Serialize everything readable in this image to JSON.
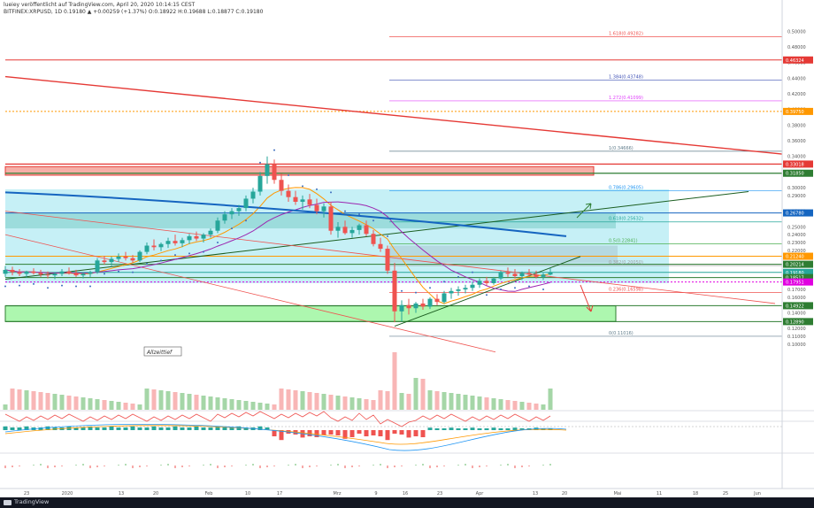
{
  "header": {
    "line1": "lueiey veröffentlicht auf TradingView.com, April 20, 2020 10:14:15 CEST",
    "line2": "BITFINEX:XRPUSD, 1D 0.19180 ▲ +0.00259 (+1.37%) O:0.18922 H:0.19688 L:0.18877 C:0.19180"
  },
  "footer": {
    "brand": "TradingView"
  },
  "annotation": "Allzeittief",
  "colors": {
    "up": "#26a69a",
    "down": "#ef5350",
    "resistance": "#e53935",
    "support": "#2e7d32",
    "magenta": "#e000e0",
    "blue": "#1565c0"
  },
  "chart_data": {
    "type": "candlestick",
    "symbol": "BITFINEX:XRPUSD",
    "interval": "1D",
    "ylim": [
      0.092,
      0.515
    ],
    "y_ticks": [
      "0.50000",
      "0.48000",
      "0.46000",
      "0.44000",
      "0.42000",
      "0.40000",
      "0.38000",
      "0.36000",
      "0.34000",
      "0.32000",
      "0.30000",
      "0.29000",
      "0.27000",
      "0.25000",
      "0.24000",
      "0.23000",
      "0.22000",
      "0.21000",
      "0.20000",
      "0.19000",
      "0.18000",
      "0.17000",
      "0.16000",
      "0.15000",
      "0.14000",
      "0.13000",
      "0.12000",
      "0.11000",
      "0.10000",
      "0.09000"
    ],
    "x_ticks": [
      "23",
      "2020",
      "13",
      "20",
      "Feb",
      "10",
      "17",
      "Mrz",
      "9",
      "16",
      "23",
      "Apr",
      "13",
      "20",
      "Mai",
      "11",
      "18",
      "25",
      "Jun"
    ],
    "price_labels": [
      {
        "text": "0.46324",
        "value": 0.46324,
        "color": "#e53935"
      },
      {
        "text": "0.39750",
        "value": 0.3975,
        "color": "#ff9800"
      },
      {
        "text": "0.33018",
        "value": 0.33018,
        "color": "#e53935"
      },
      {
        "text": "0.31850",
        "value": 0.3185,
        "color": "#2e7d32"
      },
      {
        "text": "0.26780",
        "value": 0.2678,
        "color": "#1565c0"
      },
      {
        "text": "0.21240",
        "value": 0.2124,
        "color": "#ff9800"
      },
      {
        "text": "0.20214",
        "value": 0.20214,
        "color": "#2e7d32"
      },
      {
        "text": "0.19180",
        "value": 0.1918,
        "color": "#26a69a"
      },
      {
        "text": "0.18517",
        "value": 0.18517,
        "color": "#2e7d32"
      },
      {
        "text": "0.17951",
        "value": 0.17951,
        "color": "#e000e0"
      },
      {
        "text": "0.14922",
        "value": 0.14922,
        "color": "#2e7d32"
      },
      {
        "text": "0.12890",
        "value": 0.1289,
        "color": "#2e7d32"
      }
    ],
    "fibonacci": [
      {
        "label": "1.618(0.49282)",
        "value": 0.49282,
        "color": "#ef5350"
      },
      {
        "label": "1.384(0.43748)",
        "value": 0.43748,
        "color": "#3f51b5"
      },
      {
        "label": "1.272(0.41099)",
        "value": 0.41099,
        "color": "#e040fb"
      },
      {
        "label": "1(0.34666)",
        "value": 0.34666,
        "color": "#607d8b"
      },
      {
        "label": "0.786(0.29605)",
        "value": 0.29605,
        "color": "#2196f3"
      },
      {
        "label": "0.618(0.25632)",
        "value": 0.25632,
        "color": "#26a69a"
      },
      {
        "label": "0.5(0.22841)",
        "value": 0.22841,
        "color": "#4caf50"
      },
      {
        "label": "0.382(0.20050)",
        "value": 0.2005,
        "color": "#9e9e9e"
      },
      {
        "label": "0.236(0.16598)",
        "value": 0.16598,
        "color": "#ef5350"
      },
      {
        "label": "0(0.11016)",
        "value": 0.11016,
        "color": "#607d8b"
      }
    ],
    "candles": [
      [
        0.19,
        0.2,
        0.186,
        0.195
      ],
      [
        0.195,
        0.199,
        0.188,
        0.192
      ],
      [
        0.192,
        0.196,
        0.187,
        0.19
      ],
      [
        0.19,
        0.194,
        0.185,
        0.193
      ],
      [
        0.193,
        0.197,
        0.189,
        0.191
      ],
      [
        0.191,
        0.195,
        0.186,
        0.189
      ],
      [
        0.189,
        0.193,
        0.184,
        0.188
      ],
      [
        0.188,
        0.192,
        0.183,
        0.19
      ],
      [
        0.19,
        0.196,
        0.187,
        0.193
      ],
      [
        0.193,
        0.198,
        0.189,
        0.191
      ],
      [
        0.191,
        0.195,
        0.186,
        0.188
      ],
      [
        0.188,
        0.192,
        0.184,
        0.19
      ],
      [
        0.19,
        0.194,
        0.186,
        0.192
      ],
      [
        0.192,
        0.21,
        0.19,
        0.207
      ],
      [
        0.207,
        0.213,
        0.202,
        0.205
      ],
      [
        0.205,
        0.212,
        0.2,
        0.209
      ],
      [
        0.209,
        0.216,
        0.205,
        0.212
      ],
      [
        0.212,
        0.218,
        0.207,
        0.21
      ],
      [
        0.21,
        0.214,
        0.204,
        0.207
      ],
      [
        0.207,
        0.22,
        0.205,
        0.218
      ],
      [
        0.218,
        0.23,
        0.215,
        0.226
      ],
      [
        0.226,
        0.234,
        0.22,
        0.224
      ],
      [
        0.224,
        0.23,
        0.219,
        0.228
      ],
      [
        0.228,
        0.236,
        0.223,
        0.232
      ],
      [
        0.232,
        0.24,
        0.226,
        0.229
      ],
      [
        0.229,
        0.236,
        0.224,
        0.233
      ],
      [
        0.233,
        0.241,
        0.228,
        0.238
      ],
      [
        0.238,
        0.244,
        0.232,
        0.235
      ],
      [
        0.235,
        0.242,
        0.23,
        0.24
      ],
      [
        0.24,
        0.248,
        0.236,
        0.245
      ],
      [
        0.245,
        0.262,
        0.242,
        0.258
      ],
      [
        0.258,
        0.27,
        0.254,
        0.266
      ],
      [
        0.266,
        0.274,
        0.26,
        0.27
      ],
      [
        0.27,
        0.278,
        0.264,
        0.274
      ],
      [
        0.274,
        0.29,
        0.27,
        0.286
      ],
      [
        0.286,
        0.3,
        0.28,
        0.295
      ],
      [
        0.295,
        0.32,
        0.29,
        0.315
      ],
      [
        0.315,
        0.34,
        0.305,
        0.33
      ],
      [
        0.33,
        0.336,
        0.305,
        0.31
      ],
      [
        0.31,
        0.318,
        0.29,
        0.296
      ],
      [
        0.296,
        0.304,
        0.282,
        0.288
      ],
      [
        0.288,
        0.296,
        0.278,
        0.282
      ],
      [
        0.282,
        0.29,
        0.272,
        0.285
      ],
      [
        0.285,
        0.292,
        0.274,
        0.278
      ],
      [
        0.278,
        0.286,
        0.266,
        0.27
      ],
      [
        0.27,
        0.28,
        0.262,
        0.276
      ],
      [
        0.276,
        0.282,
        0.24,
        0.245
      ],
      [
        0.245,
        0.256,
        0.236,
        0.25
      ],
      [
        0.25,
        0.258,
        0.24,
        0.242
      ],
      [
        0.242,
        0.25,
        0.236,
        0.246
      ],
      [
        0.246,
        0.254,
        0.24,
        0.252
      ],
      [
        0.252,
        0.258,
        0.238,
        0.241
      ],
      [
        0.241,
        0.246,
        0.225,
        0.228
      ],
      [
        0.228,
        0.236,
        0.218,
        0.222
      ],
      [
        0.222,
        0.226,
        0.19,
        0.194
      ],
      [
        0.194,
        0.204,
        0.128,
        0.142
      ],
      [
        0.142,
        0.156,
        0.129,
        0.15
      ],
      [
        0.15,
        0.158,
        0.138,
        0.146
      ],
      [
        0.146,
        0.154,
        0.14,
        0.152
      ],
      [
        0.152,
        0.158,
        0.144,
        0.148
      ],
      [
        0.148,
        0.16,
        0.145,
        0.158
      ],
      [
        0.158,
        0.164,
        0.15,
        0.154
      ],
      [
        0.154,
        0.168,
        0.152,
        0.165
      ],
      [
        0.165,
        0.172,
        0.158,
        0.168
      ],
      [
        0.168,
        0.174,
        0.162,
        0.17
      ],
      [
        0.17,
        0.176,
        0.165,
        0.172
      ],
      [
        0.172,
        0.18,
        0.168,
        0.176
      ],
      [
        0.176,
        0.184,
        0.172,
        0.181
      ],
      [
        0.181,
        0.186,
        0.175,
        0.178
      ],
      [
        0.178,
        0.186,
        0.176,
        0.184
      ],
      [
        0.184,
        0.194,
        0.182,
        0.192
      ],
      [
        0.192,
        0.198,
        0.186,
        0.19
      ],
      [
        0.19,
        0.196,
        0.184,
        0.187
      ],
      [
        0.187,
        0.193,
        0.182,
        0.191
      ],
      [
        0.191,
        0.196,
        0.186,
        0.189
      ],
      [
        0.189,
        0.194,
        0.184,
        0.186
      ],
      [
        0.186,
        0.191,
        0.182,
        0.189
      ],
      [
        0.189,
        0.197,
        0.188,
        0.1918
      ]
    ]
  }
}
